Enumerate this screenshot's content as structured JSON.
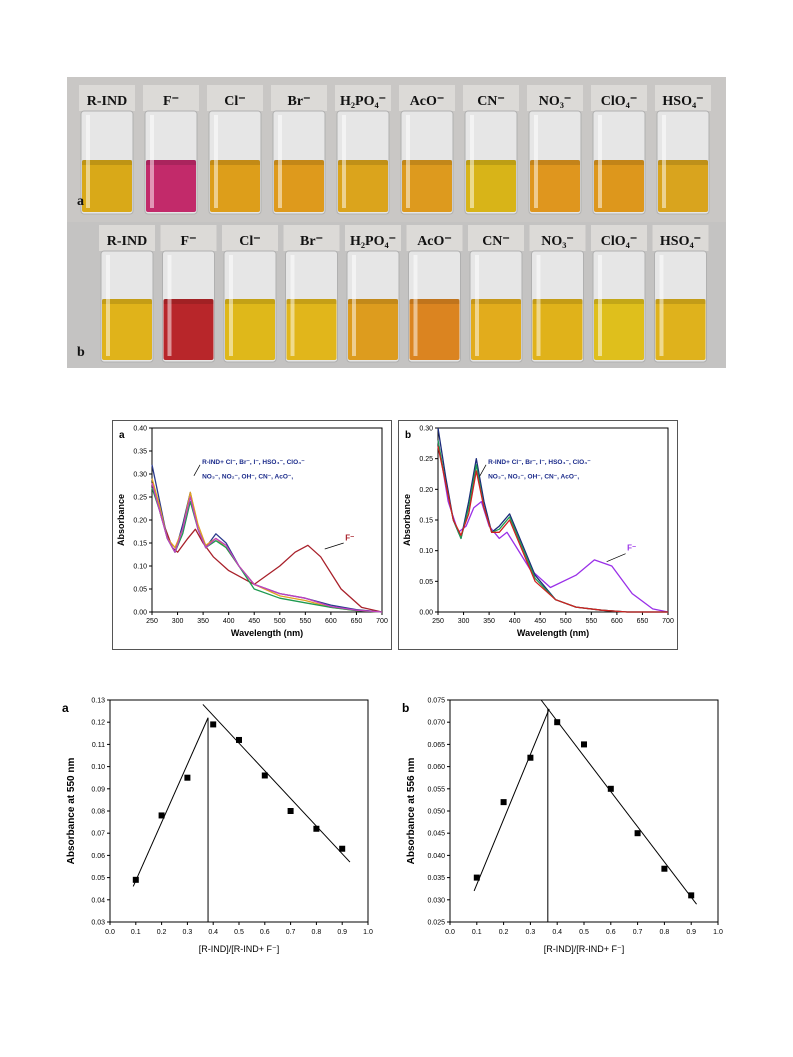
{
  "photo": {
    "rows": [
      {
        "panel": "a",
        "labels": [
          "R-IND",
          "F⁻",
          "Cl⁻",
          "Br⁻",
          "H₂PO₄⁻",
          "AcO⁻",
          "CN⁻",
          "NO₃⁻",
          "ClO₄⁻",
          "HSO₄⁻"
        ],
        "colors": [
          "#d9a918",
          "#c22a6a",
          "#dd9e1a",
          "#de9a1c",
          "#dba41c",
          "#dd9a1e",
          "#d8b418",
          "#df961e",
          "#dd971c",
          "#d9a41e"
        ]
      },
      {
        "panel": "b",
        "labels": [
          "R-IND",
          "F⁻",
          "Cl⁻",
          "Br⁻",
          "H₂PO₄⁻",
          "AcO⁻",
          "CN⁻",
          "NO₃⁻",
          "ClO₄⁻",
          "HSO₄⁻"
        ],
        "colors": [
          "#e0b31a",
          "#b8262a",
          "#dfb81a",
          "#e1b61b",
          "#dd9c1e",
          "#db8420",
          "#e2ac1c",
          "#e0b21a",
          "#dfbf1c",
          "#dfb21c"
        ]
      }
    ]
  },
  "uv_panels": [
    {
      "panel": "a",
      "ylabel": "Absorbance",
      "xlabel": "Wavelength (nm)",
      "annotation_1": "R-IND+ Cl⁻, Br⁻, I⁻, HSO₄⁻, ClO₄⁻",
      "annotation_2": "NO₃⁻, NO₂⁻, OH⁻, CN⁻, AcO⁻,",
      "f_label": "F⁻",
      "f_color": "#a8202a"
    },
    {
      "panel": "b",
      "ylabel": "Absorbance",
      "xlabel": "Wavelength (nm)",
      "annotation_1": "R-IND+ Cl⁻, Br⁻, I⁻, HSO₄⁻, ClO₄⁻",
      "annotation_2": "NO₃⁻, NO₂⁻, OH⁻, CN⁻, AcO⁻,",
      "f_label": "F⁻",
      "f_color": "#9a30e8"
    }
  ],
  "chart_data": [
    {
      "type": "line",
      "panel": "a",
      "xlabel": "Wavelength (nm)",
      "ylabel": "Absorbance",
      "xlim": [
        250,
        700
      ],
      "ylim": [
        0,
        0.4
      ],
      "xticks": [
        250,
        300,
        350,
        400,
        450,
        500,
        550,
        600,
        650,
        700
      ],
      "yticks": [
        0.0,
        0.05,
        0.1,
        0.15,
        0.2,
        0.25,
        0.3,
        0.35,
        0.4
      ],
      "series": [
        {
          "name": "F⁻",
          "color": "#a8202a",
          "x": [
            250,
            270,
            290,
            300,
            320,
            335,
            350,
            370,
            400,
            450,
            500,
            530,
            555,
            580,
            620,
            660,
            700
          ],
          "y": [
            0.28,
            0.2,
            0.14,
            0.13,
            0.16,
            0.18,
            0.15,
            0.12,
            0.09,
            0.06,
            0.1,
            0.13,
            0.145,
            0.12,
            0.05,
            0.01,
            0.0
          ]
        },
        {
          "color": "#2b3a8c",
          "x": [
            250,
            265,
            280,
            295,
            310,
            325,
            340,
            355,
            375,
            395,
            420,
            450,
            500,
            550,
            600,
            650,
            700
          ],
          "y": [
            0.32,
            0.24,
            0.16,
            0.13,
            0.19,
            0.26,
            0.18,
            0.14,
            0.17,
            0.15,
            0.1,
            0.06,
            0.04,
            0.03,
            0.015,
            0.005,
            0.0
          ]
        },
        {
          "color": "#e0a020",
          "x": [
            250,
            265,
            280,
            295,
            310,
            325,
            340,
            355,
            375,
            395,
            420,
            450,
            500,
            550,
            600,
            650,
            700
          ],
          "y": [
            0.29,
            0.23,
            0.16,
            0.14,
            0.18,
            0.26,
            0.19,
            0.145,
            0.16,
            0.14,
            0.1,
            0.06,
            0.035,
            0.025,
            0.01,
            0.003,
            0.0
          ]
        },
        {
          "color": "#1e9a50",
          "x": [
            250,
            265,
            280,
            295,
            310,
            325,
            340,
            355,
            375,
            395,
            420,
            450,
            500,
            550,
            600,
            650,
            700
          ],
          "y": [
            0.27,
            0.22,
            0.16,
            0.13,
            0.17,
            0.24,
            0.18,
            0.14,
            0.155,
            0.14,
            0.1,
            0.05,
            0.03,
            0.02,
            0.01,
            0.003,
            0.0
          ]
        },
        {
          "color": "#c040c0",
          "x": [
            250,
            265,
            280,
            295,
            310,
            325,
            340,
            355,
            375,
            395,
            420,
            450,
            500,
            550,
            600,
            650,
            700
          ],
          "y": [
            0.28,
            0.22,
            0.16,
            0.13,
            0.18,
            0.25,
            0.18,
            0.14,
            0.16,
            0.145,
            0.1,
            0.06,
            0.04,
            0.03,
            0.012,
            0.004,
            0.0
          ]
        }
      ]
    },
    {
      "type": "line",
      "panel": "b",
      "xlabel": "Wavelength (nm)",
      "ylabel": "Absorbance",
      "xlim": [
        250,
        700
      ],
      "ylim": [
        0,
        0.3
      ],
      "xticks": [
        250,
        300,
        350,
        400,
        450,
        500,
        550,
        600,
        650,
        700
      ],
      "yticks": [
        0.0,
        0.05,
        0.1,
        0.15,
        0.2,
        0.25,
        0.3
      ],
      "series": [
        {
          "name": "F⁻",
          "color": "#9a30e8",
          "x": [
            250,
            270,
            290,
            305,
            320,
            335,
            350,
            370,
            385,
            400,
            430,
            470,
            520,
            556,
            590,
            630,
            670,
            700
          ],
          "y": [
            0.28,
            0.18,
            0.13,
            0.14,
            0.17,
            0.18,
            0.14,
            0.12,
            0.13,
            0.11,
            0.07,
            0.04,
            0.06,
            0.085,
            0.075,
            0.03,
            0.005,
            0.0
          ]
        },
        {
          "color": "#1a2a7a",
          "x": [
            250,
            265,
            280,
            295,
            310,
            325,
            340,
            355,
            370,
            390,
            410,
            440,
            480,
            520,
            570,
            620,
            700
          ],
          "y": [
            0.3,
            0.22,
            0.15,
            0.12,
            0.18,
            0.25,
            0.18,
            0.13,
            0.14,
            0.16,
            0.12,
            0.06,
            0.02,
            0.008,
            0.003,
            0.0,
            0.0
          ]
        },
        {
          "color": "#1e9a50",
          "x": [
            250,
            265,
            280,
            295,
            310,
            325,
            340,
            355,
            370,
            390,
            410,
            440,
            480,
            520,
            570,
            620,
            700
          ],
          "y": [
            0.28,
            0.21,
            0.15,
            0.12,
            0.17,
            0.24,
            0.17,
            0.13,
            0.135,
            0.155,
            0.115,
            0.055,
            0.02,
            0.008,
            0.003,
            0.0,
            0.0
          ]
        },
        {
          "color": "#d02020",
          "x": [
            250,
            265,
            280,
            295,
            310,
            325,
            340,
            355,
            370,
            390,
            410,
            440,
            480,
            520,
            570,
            620,
            700
          ],
          "y": [
            0.27,
            0.21,
            0.15,
            0.125,
            0.16,
            0.23,
            0.17,
            0.13,
            0.13,
            0.15,
            0.11,
            0.05,
            0.02,
            0.008,
            0.003,
            0.0,
            0.0
          ]
        }
      ]
    },
    {
      "type": "scatter",
      "panel": "a",
      "xlabel": "[R-IND]/[R-IND+ F⁻]",
      "ylabel": "Absorbance at 550 nm",
      "xlim": [
        0.0,
        1.0
      ],
      "ylim": [
        0.03,
        0.13
      ],
      "xticks": [
        0.0,
        0.1,
        0.2,
        0.3,
        0.4,
        0.5,
        0.6,
        0.7,
        0.8,
        0.9,
        1.0
      ],
      "yticks": [
        0.03,
        0.04,
        0.05,
        0.06,
        0.07,
        0.08,
        0.09,
        0.1,
        0.11,
        0.12,
        0.13
      ],
      "points": [
        {
          "x": 0.1,
          "y": 0.049
        },
        {
          "x": 0.2,
          "y": 0.078
        },
        {
          "x": 0.3,
          "y": 0.095
        },
        {
          "x": 0.4,
          "y": 0.119
        },
        {
          "x": 0.5,
          "y": 0.112
        },
        {
          "x": 0.6,
          "y": 0.096
        },
        {
          "x": 0.7,
          "y": 0.08
        },
        {
          "x": 0.8,
          "y": 0.072
        },
        {
          "x": 0.9,
          "y": 0.063
        }
      ],
      "fit_lines": [
        {
          "x": [
            0.09,
            0.38
          ],
          "y": [
            0.046,
            0.122
          ]
        },
        {
          "x": 0.36,
          "y_at": [
            0.128
          ]
        },
        {
          "x": [
            0.36,
            0.93
          ],
          "y": [
            0.128,
            0.057
          ]
        }
      ],
      "vertical_line_x": 0.38
    },
    {
      "type": "scatter",
      "panel": "b",
      "xlabel": "[R-IND]/[R-IND+ F⁻]",
      "ylabel": "Absorbance at 556 nm",
      "xlim": [
        0.0,
        1.0
      ],
      "ylim": [
        0.025,
        0.075
      ],
      "xticks": [
        0.0,
        0.1,
        0.2,
        0.3,
        0.4,
        0.5,
        0.6,
        0.7,
        0.8,
        0.9,
        1.0
      ],
      "yticks": [
        0.025,
        0.03,
        0.035,
        0.04,
        0.045,
        0.05,
        0.055,
        0.06,
        0.065,
        0.07,
        0.075
      ],
      "points": [
        {
          "x": 0.1,
          "y": 0.035
        },
        {
          "x": 0.2,
          "y": 0.052
        },
        {
          "x": 0.3,
          "y": 0.062
        },
        {
          "x": 0.4,
          "y": 0.07
        },
        {
          "x": 0.5,
          "y": 0.065
        },
        {
          "x": 0.6,
          "y": 0.055
        },
        {
          "x": 0.7,
          "y": 0.045
        },
        {
          "x": 0.8,
          "y": 0.037
        },
        {
          "x": 0.9,
          "y": 0.031
        }
      ],
      "fit_lines": [
        {
          "x": [
            0.09,
            0.37
          ],
          "y": [
            0.032,
            0.073
          ]
        },
        {
          "x": [
            0.34,
            0.92
          ],
          "y": [
            0.075,
            0.029
          ]
        }
      ],
      "vertical_line_x": 0.365
    }
  ]
}
